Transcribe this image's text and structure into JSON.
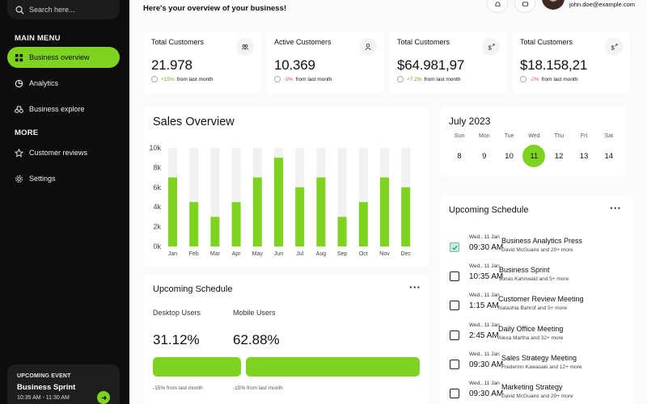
{
  "sidebar": {
    "search_placeholder": "Search here...",
    "main_menu_label": "MAIN MENU",
    "more_label": "MORE",
    "items": [
      {
        "label": "Business overview",
        "icon": "grid-icon",
        "active": true
      },
      {
        "label": "Analytics",
        "icon": "pie-chart-icon",
        "active": false
      },
      {
        "label": "Business explore",
        "icon": "binoculars-icon",
        "active": false
      }
    ],
    "more_items": [
      {
        "label": "Customer reviews",
        "icon": "star-icon"
      },
      {
        "label": "Settings",
        "icon": "gear-icon"
      }
    ],
    "upcoming_event": {
      "label": "UPCOMING EVENT",
      "title": "Business Sprint",
      "time": "10:35 AM - 11:30 AM"
    }
  },
  "header": {
    "greeting": "Here's your overview of your business!",
    "email": "john.doe@example.com"
  },
  "stats": [
    {
      "title": "Total Customers",
      "value": "21.978",
      "change": "+15%",
      "direction": "up",
      "suffix": "from last month",
      "icon": "users-icon"
    },
    {
      "title": "Active Customers",
      "value": "10.369",
      "change": "-9%",
      "direction": "down",
      "suffix": "from last month",
      "icon": "user-icon"
    },
    {
      "title": "Total Customers",
      "value": "$64.981,97",
      "change": "+7.2%",
      "direction": "up",
      "suffix": "from last month",
      "icon": "dollar-icon"
    },
    {
      "title": "Total Customers",
      "value": "$18.158,21",
      "change": "-2%",
      "direction": "down",
      "suffix": "from last month",
      "icon": "dollar-icon"
    }
  ],
  "chart_data": {
    "type": "bar",
    "title": "Sales Overview",
    "categories": [
      "Jan",
      "Feb",
      "Mar",
      "Apr",
      "May",
      "Jun",
      "Jul",
      "Aug",
      "Sep",
      "Oct",
      "Nov",
      "Dec"
    ],
    "values": [
      7000,
      4500,
      3000,
      4500,
      7000,
      9000,
      6000,
      7000,
      3000,
      4500,
      7000,
      6000
    ],
    "ylim": [
      0,
      10000
    ],
    "yticks": [
      "0k",
      "2k",
      "4k",
      "6k",
      "8k",
      "10k"
    ],
    "bar_color": "#7ed321",
    "track_color": "#f1f1f1"
  },
  "usage": {
    "title": "Upcoming Schedule",
    "desktop": {
      "label": "Desktop Users",
      "value": "31.12%",
      "share": 31.12,
      "note": "-15% from last month"
    },
    "mobile": {
      "label": "Mobile Users",
      "value": "62.88%",
      "share": 62.88,
      "note": "-15% from last month"
    }
  },
  "calendar": {
    "title": "July 2023",
    "days": [
      {
        "name": "Sun",
        "date": "8",
        "selected": false
      },
      {
        "name": "Mon",
        "date": "9",
        "selected": false
      },
      {
        "name": "Tue",
        "date": "10",
        "selected": false
      },
      {
        "name": "Wed",
        "date": "11",
        "selected": true
      },
      {
        "name": "Thu",
        "date": "12",
        "selected": false
      },
      {
        "name": "Fri",
        "date": "13",
        "selected": false
      },
      {
        "name": "Sat",
        "date": "14",
        "selected": false
      }
    ]
  },
  "schedule": {
    "title": "Upcoming Schedule",
    "items": [
      {
        "date": "Wed., 11 Jan",
        "time": "09:30 AM",
        "event": "Business Analytics Press",
        "people": "David McGuaire and 20+ more",
        "checked": true
      },
      {
        "date": "Wed., 11 Jan",
        "time": "10:35 AM",
        "event": "Business Sprint",
        "people": "Jonas Kahnwald and 5+ more",
        "checked": false
      },
      {
        "date": "Wed., 11 Jan",
        "time": "1:15 AM",
        "event": "Customer Review Meeting",
        "people": "Natashia Bahrof and 5+ more",
        "checked": false
      },
      {
        "date": "Wed., 11 Jan",
        "time": "2:45 AM",
        "event": "Daily Office Meeting",
        "people": "Alexa Martha and 32+ more",
        "checked": false
      },
      {
        "date": "Wed., 11 Jan",
        "time": "09:30 AM",
        "event": "Sales Strategy Meeting",
        "people": "Frederinn Kawasaki and 12+ more",
        "checked": false
      },
      {
        "date": "Wed., 11 Jan",
        "time": "09:30 AM",
        "event": "Marketing Strategy",
        "people": "David McGuaire and 20+ more",
        "checked": false
      }
    ]
  },
  "colors": {
    "accent": "#7ed321",
    "sidebar_bg": "#0d0d0d",
    "negative": "#e05a4a"
  }
}
